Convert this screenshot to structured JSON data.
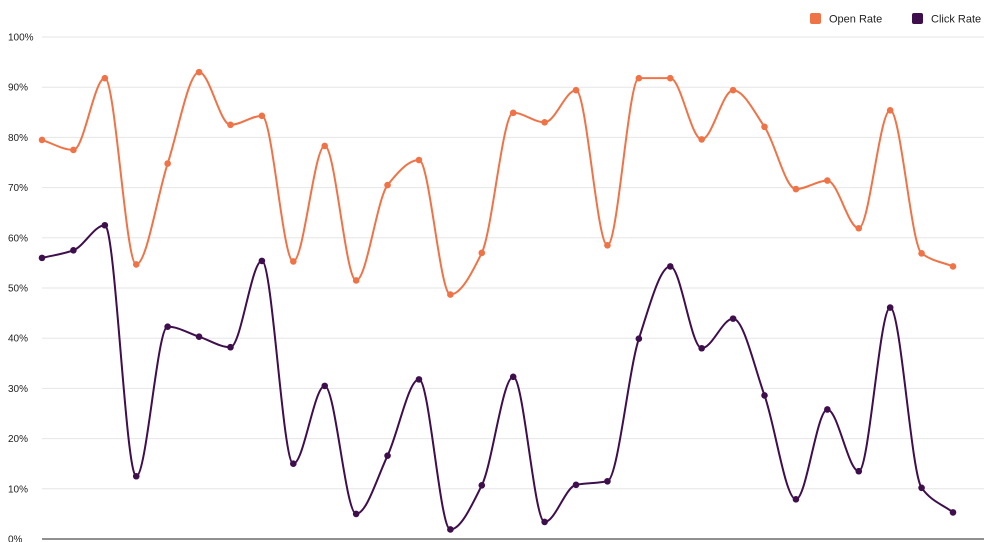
{
  "chart_data": {
    "type": "line",
    "title": "",
    "xlabel": "",
    "ylabel": "",
    "ylim": [
      0,
      100
    ],
    "y_ticks": [
      "0%",
      "10%",
      "20%",
      "30%",
      "40%",
      "50%",
      "60%",
      "70%",
      "80%",
      "90%",
      "100%"
    ],
    "grid": true,
    "smooth": true,
    "legend_position": "top-right",
    "series": [
      {
        "name": "Open Rate",
        "color": "#f07347",
        "values": [
          79.5,
          77.5,
          91.8,
          54.7,
          74.8,
          93.0,
          82.5,
          84.3,
          55.3,
          78.3,
          51.5,
          70.5,
          75.5,
          48.7,
          57.0,
          84.9,
          83.0,
          89.4,
          58.5,
          91.8,
          91.8,
          79.6,
          89.4,
          82.1,
          69.7,
          71.4,
          61.9,
          85.4,
          56.9,
          54.3
        ]
      },
      {
        "name": "Click Rate",
        "color": "#3f0e4d",
        "values": [
          56.0,
          57.5,
          62.5,
          12.5,
          42.3,
          40.3,
          38.2,
          55.4,
          15.0,
          30.5,
          5.0,
          16.6,
          31.8,
          1.9,
          10.7,
          32.3,
          3.4,
          10.8,
          11.5,
          39.9,
          54.3,
          38.0,
          43.9,
          28.6,
          7.9,
          25.8,
          13.5,
          46.1,
          10.2,
          5.3
        ]
      }
    ]
  }
}
